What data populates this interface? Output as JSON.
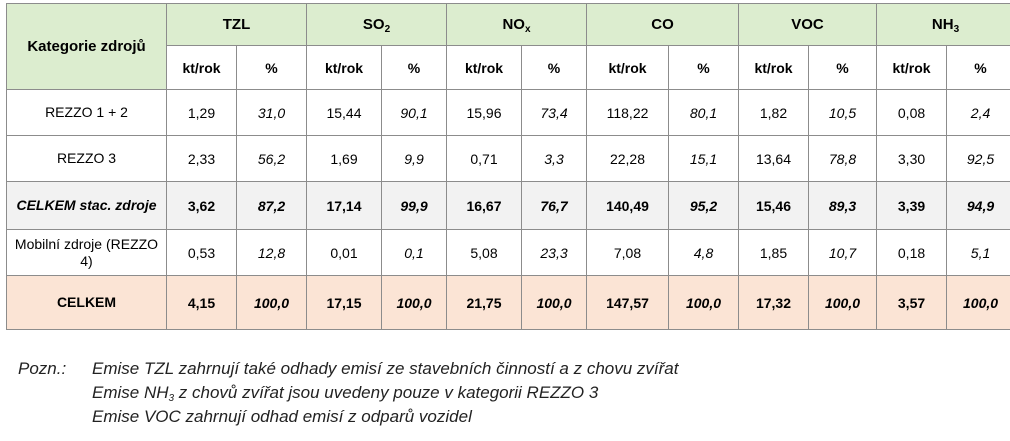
{
  "table": {
    "category_header": "Kategorie zdrojů",
    "pollutants": [
      {
        "base": "TZL",
        "sub": ""
      },
      {
        "base": "SO",
        "sub": "2"
      },
      {
        "base": "NO",
        "sub": "x"
      },
      {
        "base": "CO",
        "sub": ""
      },
      {
        "base": "VOC",
        "sub": ""
      },
      {
        "base": "NH",
        "sub": "3"
      }
    ],
    "unit_label": "kt/rok",
    "pct_label": "%",
    "rows": [
      {
        "category": "REZZO 1 + 2",
        "values": [
          "1,29",
          "31,0",
          "15,44",
          "90,1",
          "15,96",
          "73,4",
          "118,22",
          "80,1",
          "1,82",
          "10,5",
          "0,08",
          "2,4"
        ]
      },
      {
        "category": "REZZO 3",
        "values": [
          "2,33",
          "56,2",
          "1,69",
          "9,9",
          "0,71",
          "3,3",
          "22,28",
          "15,1",
          "13,64",
          "78,8",
          "3,30",
          "92,5"
        ]
      },
      {
        "category": "CELKEM  stac. zdroje",
        "values": [
          "3,62",
          "87,2",
          "17,14",
          "99,9",
          "16,67",
          "76,7",
          "140,49",
          "95,2",
          "15,46",
          "89,3",
          "3,39",
          "94,9"
        ]
      },
      {
        "category": "Mobilní zdroje (REZZO 4)",
        "values": [
          "0,53",
          "12,8",
          "0,01",
          "0,1",
          "5,08",
          "23,3",
          "7,08",
          "4,8",
          "1,85",
          "10,7",
          "0,18",
          "5,1"
        ]
      },
      {
        "category": "CELKEM",
        "values": [
          "4,15",
          "100,0",
          "17,15",
          "100,0",
          "21,75",
          "100,0",
          "147,57",
          "100,0",
          "17,32",
          "100,0",
          "3,57",
          "100,0"
        ]
      }
    ]
  },
  "notes": {
    "label": "Pozn.:",
    "line1": "Emise TZL zahrnují také odhady emisí ze stavebních činností a z chovu zvířat",
    "line2_pre": "Emise NH",
    "line2_sub": "3",
    "line2_post": " z chovů zvířat jsou uvedeny pouze v kategorii REZZO 3",
    "line3": "Emise VOC zahrnují odhad emisí z odparů vozidel"
  }
}
